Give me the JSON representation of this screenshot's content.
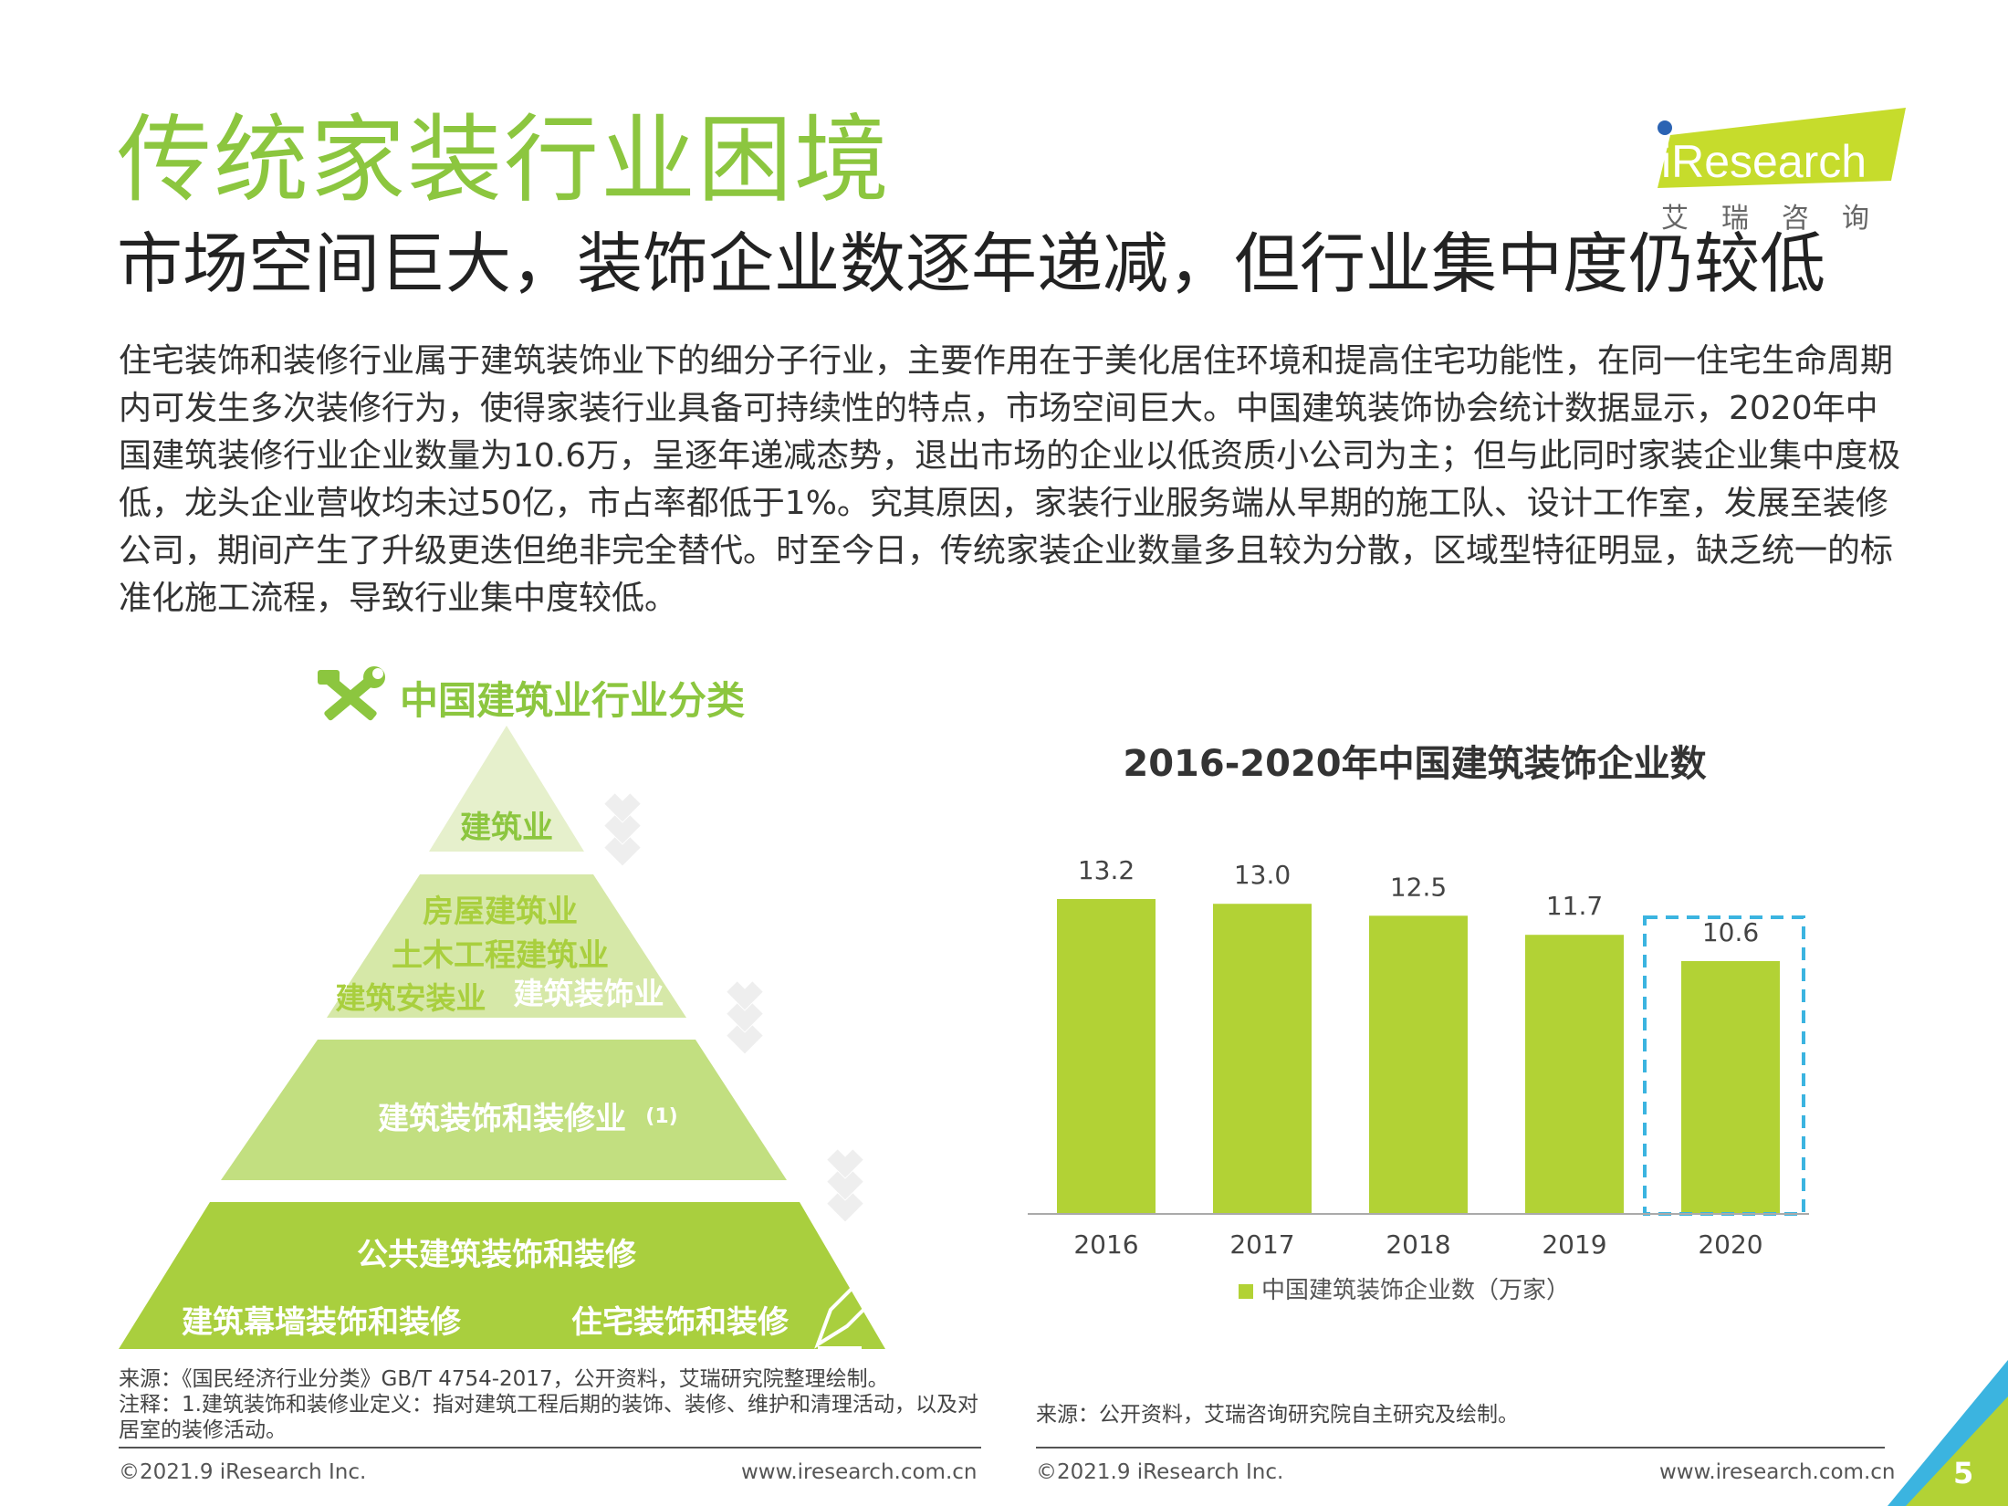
{
  "header": {
    "title": "传统家装行业困境",
    "subtitle": "市场空间巨大，装饰企业数逐年递减，但行业集中度仍较低"
  },
  "logo": {
    "brand": "iResearch",
    "cn": "艾瑞咨询"
  },
  "body": {
    "paragraph": "住宅装饰和装修行业属于建筑装饰业下的细分子行业，主要作用在于美化居住环境和提高住宅功能性，在同一住宅生命周期内可发生多次装修行为，使得家装行业具备可持续性的特点，市场空间巨大。中国建筑装饰协会统计数据显示，2020年中国建筑装修行业企业数量为10.6万，呈逐年递减态势，退出市场的企业以低资质小公司为主；但与此同时家装企业集中度极低，龙头企业营收均未过50亿，市占率都低于1%。究其原因，家装行业服务端从早期的施工队、设计工作室，发展至装修公司，期间产生了升级更迭但绝非完全替代。时至今日，传统家装企业数量多且较为分散，区域型特征明显，缺乏统一的标准化施工流程，导致行业集中度较低。"
  },
  "pyramid": {
    "title": "中国建筑业行业分类",
    "icon": "tools-icon",
    "level1": "建筑业",
    "level2_line1": "房屋建筑业",
    "level2_line2": "土木工程建筑业",
    "level2_left": "建筑安装业",
    "level2_right": "建筑装饰业",
    "level3": "建筑装饰和装修业",
    "level3_note": "(1)",
    "level4_top": "公共建筑装饰和装修",
    "level4_left": "建筑幕墙装饰和装修",
    "level4_right": "住宅装饰和装修",
    "colors": [
      "#e6f0cc",
      "#d6e8a8",
      "#c2df80",
      "#a9cf3e"
    ]
  },
  "chart_data": {
    "type": "bar",
    "title": "2016-2020年中国建筑装饰企业数",
    "categories": [
      "2016",
      "2017",
      "2018",
      "2019",
      "2020"
    ],
    "series": [
      {
        "name": "中国建筑装饰企业数（万家）",
        "values": [
          13.2,
          13.0,
          12.5,
          11.7,
          10.6
        ]
      }
    ],
    "value_labels": [
      "13.2",
      "13.0",
      "12.5",
      "11.7",
      "10.6"
    ],
    "ylim": [
      0,
      13.2
    ],
    "highlight_category": "2020",
    "bar_color": "#b2d235",
    "highlight_color": "#3bb4e0",
    "legend_position": "bottom",
    "grid": false
  },
  "sources": {
    "left_source": "来源：《国民经济行业分类》GB/T 4754-2017，公开资料，艾瑞研究院整理绘制。",
    "left_note": "注释：1.建筑装饰和装修业定义：指对建筑工程后期的装饰、装修、维护和清理活动，以及对居室的装修活动。",
    "right_source": "来源：公开资料，艾瑞咨询研究院自主研究及绘制。"
  },
  "footer": {
    "copyright_left": "©2021.9 iResearch Inc.",
    "url_left": "www.iresearch.com.cn",
    "copyright_right": "©2021.9 iResearch Inc.",
    "url_right": "www.iresearch.com.cn",
    "page_number": "5"
  }
}
